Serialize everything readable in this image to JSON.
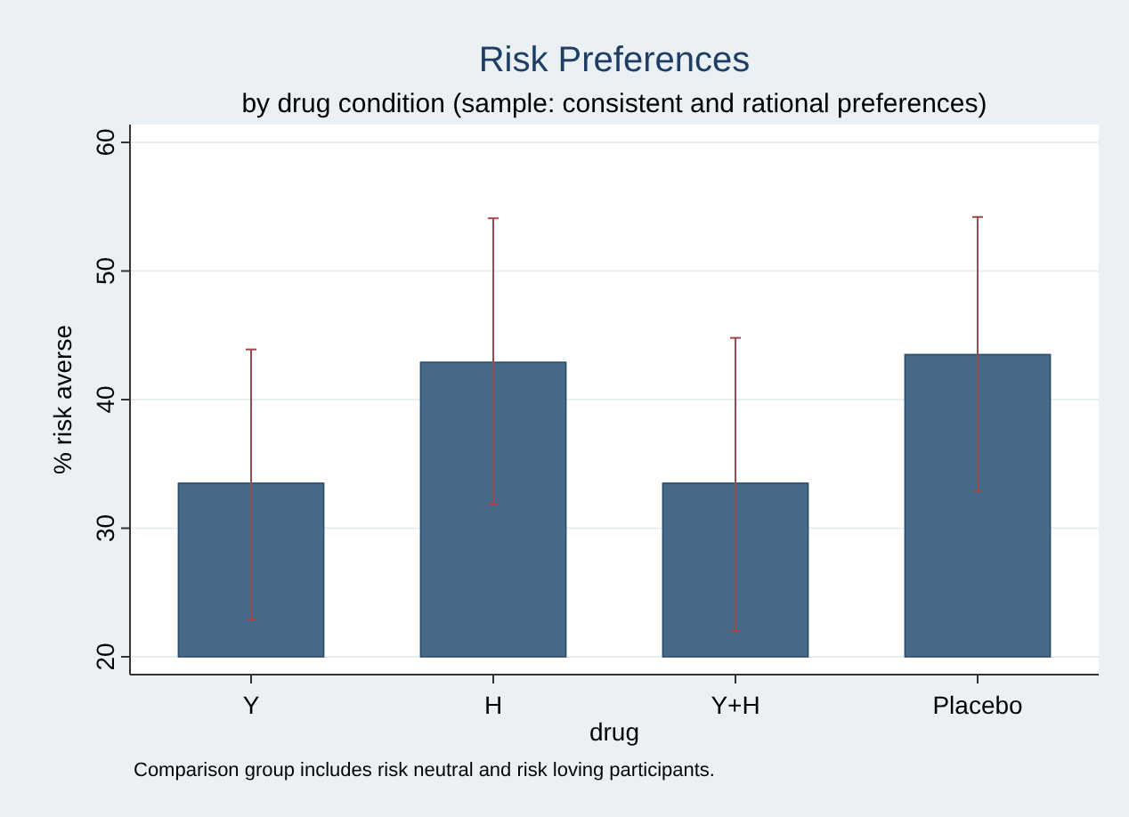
{
  "chart_data": {
    "type": "bar",
    "title": "Risk Preferences",
    "subtitle": "by drug condition (sample: consistent and rational preferences)",
    "xlabel": "drug",
    "ylabel": "% risk averse",
    "categories": [
      "Y",
      "H",
      "Y+H",
      "Placebo"
    ],
    "series": [
      {
        "color": "#476a8a",
        "values": [
          33.5,
          42.9,
          33.5,
          43.5
        ],
        "errors": [
          [
            22.9,
            43.9
          ],
          [
            31.9,
            54.1
          ],
          [
            22.0,
            44.8
          ],
          [
            32.9,
            54.2
          ]
        ]
      }
    ],
    "ylim": [
      20,
      60
    ],
    "yticks": [
      20,
      30,
      40,
      50,
      60
    ],
    "grid": "y",
    "annotations": [
      "Comparison group includes risk neutral and risk loving participants."
    ]
  }
}
